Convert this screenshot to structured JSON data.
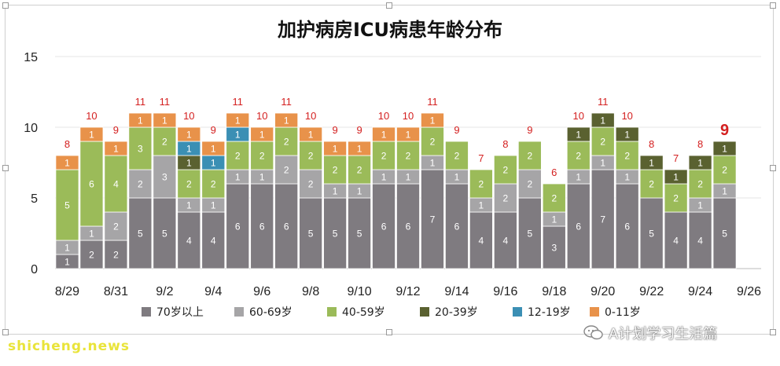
{
  "chart_data": {
    "type": "bar",
    "stacked": true,
    "title": "加护病房ICU病患年龄分布",
    "categories": [
      "8/29",
      "8/30",
      "8/31",
      "9/1",
      "9/2",
      "9/3",
      "9/4",
      "9/5",
      "9/6",
      "9/7",
      "9/8",
      "9/9",
      "9/10",
      "9/11",
      "9/12",
      "9/13",
      "9/14",
      "9/15",
      "9/16",
      "9/17",
      "9/18",
      "9/19",
      "9/20",
      "9/21",
      "9/22",
      "9/23",
      "9/24",
      "9/25",
      "9/26"
    ],
    "x_tick_labels": [
      "8/29",
      "8/31",
      "9/2",
      "9/4",
      "9/6",
      "9/8",
      "9/10",
      "9/12",
      "9/14",
      "9/16",
      "9/18",
      "9/20",
      "9/22",
      "9/24",
      "9/26"
    ],
    "ylim": [
      0,
      15
    ],
    "y_ticks": [
      0,
      5,
      10,
      15
    ],
    "grid": "horizontal",
    "legend_position": "bottom",
    "series": [
      {
        "name": "70岁以上",
        "color": "#7f7b80",
        "values": [
          1,
          2,
          2,
          5,
          5,
          4,
          4,
          6,
          6,
          6,
          5,
          5,
          5,
          6,
          6,
          7,
          6,
          4,
          4,
          5,
          3,
          6,
          7,
          6,
          5,
          4,
          4,
          5,
          null
        ]
      },
      {
        "name": "60-69岁",
        "color": "#a6a5a7",
        "values": [
          1,
          1,
          2,
          2,
          3,
          1,
          1,
          1,
          1,
          2,
          2,
          1,
          1,
          1,
          1,
          1,
          1,
          1,
          2,
          2,
          1,
          1,
          1,
          1,
          null,
          null,
          1,
          1,
          null
        ]
      },
      {
        "name": "40-59岁",
        "color": "#9bbb59",
        "values": [
          5,
          6,
          4,
          3,
          2,
          2,
          2,
          2,
          2,
          2,
          2,
          2,
          2,
          2,
          2,
          2,
          2,
          2,
          2,
          2,
          2,
          2,
          2,
          2,
          2,
          2,
          2,
          2,
          null
        ]
      },
      {
        "name": "20-39岁",
        "color": "#5a6130",
        "values": [
          null,
          null,
          null,
          null,
          null,
          1,
          null,
          null,
          null,
          null,
          null,
          null,
          null,
          null,
          null,
          null,
          null,
          null,
          null,
          null,
          null,
          1,
          1,
          1,
          1,
          1,
          1,
          1,
          null
        ]
      },
      {
        "name": "12-19岁",
        "color": "#3b8fb4",
        "values": [
          null,
          null,
          null,
          null,
          null,
          1,
          1,
          1,
          null,
          null,
          null,
          null,
          null,
          null,
          null,
          null,
          null,
          null,
          null,
          null,
          null,
          null,
          null,
          null,
          null,
          null,
          null,
          null,
          null
        ]
      },
      {
        "name": "0-11岁",
        "color": "#e8924a",
        "values": [
          1,
          1,
          1,
          1,
          1,
          1,
          1,
          1,
          1,
          1,
          1,
          1,
          1,
          1,
          1,
          1,
          null,
          null,
          null,
          null,
          null,
          null,
          null,
          null,
          null,
          null,
          null,
          null,
          null
        ]
      }
    ],
    "totals": [
      8,
      10,
      9,
      11,
      11,
      10,
      9,
      11,
      10,
      11,
      10,
      9,
      9,
      10,
      10,
      11,
      9,
      7,
      8,
      9,
      6,
      10,
      11,
      10,
      8,
      7,
      8,
      9,
      null
    ]
  },
  "footer": {
    "left_text": "shicheng.news",
    "right_text": "A计划学习生活篇"
  },
  "colors": {
    "total_label": "#d42020",
    "grid": "#e4e4e4"
  }
}
